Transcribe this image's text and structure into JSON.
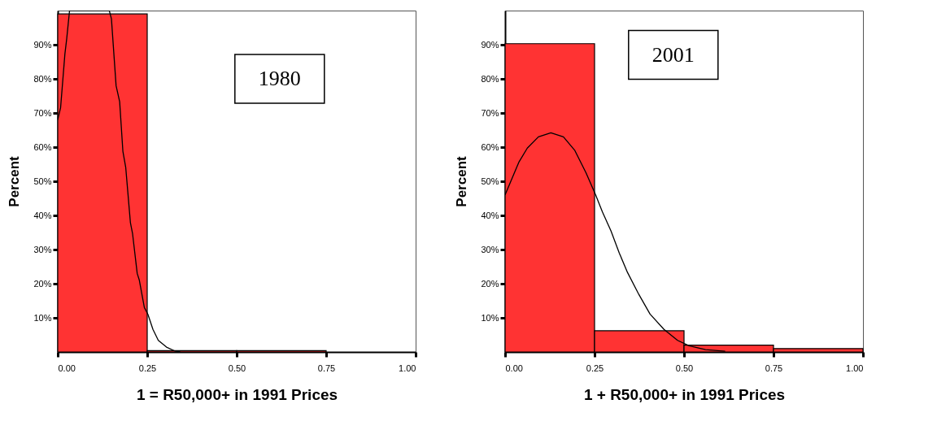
{
  "chart_data": [
    {
      "type": "histogram",
      "bins": [
        0,
        0.25,
        0.5,
        0.75,
        1.0
      ],
      "values": [
        99.0,
        0.4,
        0.4,
        null
      ],
      "color": "#ff3333",
      "series": [
        {
          "type": "line",
          "color": "#000000",
          "x": [
            0,
            0.008,
            0.02,
            0.025,
            0.033,
            0.144,
            0.15,
            0.163,
            0.173,
            0.182,
            0.19,
            0.203,
            0.209,
            0.222,
            0.228,
            0.242,
            0.252,
            0.266,
            0.281,
            0.304,
            0.327,
            0.342
          ],
          "values": [
            68,
            71.6,
            87.3,
            91.7,
            100,
            100,
            97.6,
            78,
            73.3,
            58.8,
            54,
            37.9,
            34.7,
            23,
            21,
            13,
            11,
            6.6,
            3.4,
            1.4,
            0.3,
            0
          ]
        }
      ],
      "xlim": [
        0,
        1
      ],
      "ylim": [
        0,
        100
      ],
      "xticks": [
        {
          "value": 0,
          "label": "0.00"
        },
        {
          "value": 0.25,
          "label": "0.25"
        },
        {
          "value": 0.5,
          "label": "0.50"
        },
        {
          "value": 0.75,
          "label": "0.75"
        },
        {
          "value": 1,
          "label": "1.00"
        }
      ],
      "yticks": [
        {
          "value": 10,
          "label": "10%"
        },
        {
          "value": 20,
          "label": "20%"
        },
        {
          "value": 30,
          "label": "30%"
        },
        {
          "value": 40,
          "label": "40%"
        },
        {
          "value": 50,
          "label": "50%"
        },
        {
          "value": 60,
          "label": "60%"
        },
        {
          "value": 70,
          "label": "70%"
        },
        {
          "value": 80,
          "label": "80%"
        },
        {
          "value": 90,
          "label": "90%"
        }
      ],
      "xlabel": "1 = R50,000+ in 1991 Prices",
      "ylabel": "Percent",
      "annotations": [
        "1980"
      ],
      "grid": false
    },
    {
      "type": "histogram",
      "bins": [
        0,
        0.25,
        0.5,
        0.75,
        1.0
      ],
      "values": [
        90.3,
        6.2,
        2.0,
        1.0
      ],
      "color": "#ff3333",
      "series": [
        {
          "type": "line",
          "color": "#000000",
          "x": [
            0,
            0.016,
            0.039,
            0.062,
            0.093,
            0.128,
            0.163,
            0.195,
            0.226,
            0.253,
            0.272,
            0.296,
            0.319,
            0.342,
            0.374,
            0.405,
            0.444,
            0.482,
            0.514,
            0.56,
            0.615
          ],
          "values": [
            46,
            50,
            55.7,
            59.7,
            63,
            64.2,
            63,
            59,
            52.5,
            46,
            41,
            35.4,
            29,
            23.3,
            16.8,
            11.1,
            6.6,
            3.4,
            1.8,
            0.7,
            0.2
          ]
        }
      ],
      "xlim": [
        0,
        1
      ],
      "ylim": [
        0,
        100
      ],
      "xticks": [
        {
          "value": 0,
          "label": "0.00"
        },
        {
          "value": 0.25,
          "label": "0.25"
        },
        {
          "value": 0.5,
          "label": "0.50"
        },
        {
          "value": 0.75,
          "label": "0.75"
        },
        {
          "value": 1,
          "label": "1.00"
        }
      ],
      "yticks": [
        {
          "value": 10,
          "label": "10%"
        },
        {
          "value": 20,
          "label": "20%"
        },
        {
          "value": 30,
          "label": "30%"
        },
        {
          "value": 40,
          "label": "40%"
        },
        {
          "value": 50,
          "label": "50%"
        },
        {
          "value": 60,
          "label": "60%"
        },
        {
          "value": 70,
          "label": "70%"
        },
        {
          "value": 80,
          "label": "80%"
        },
        {
          "value": 90,
          "label": "90%"
        }
      ],
      "xlabel": "1 + R50,000+ in 1991 Prices",
      "ylabel": "Percent",
      "annotations": [
        "2001"
      ],
      "grid": false
    }
  ]
}
